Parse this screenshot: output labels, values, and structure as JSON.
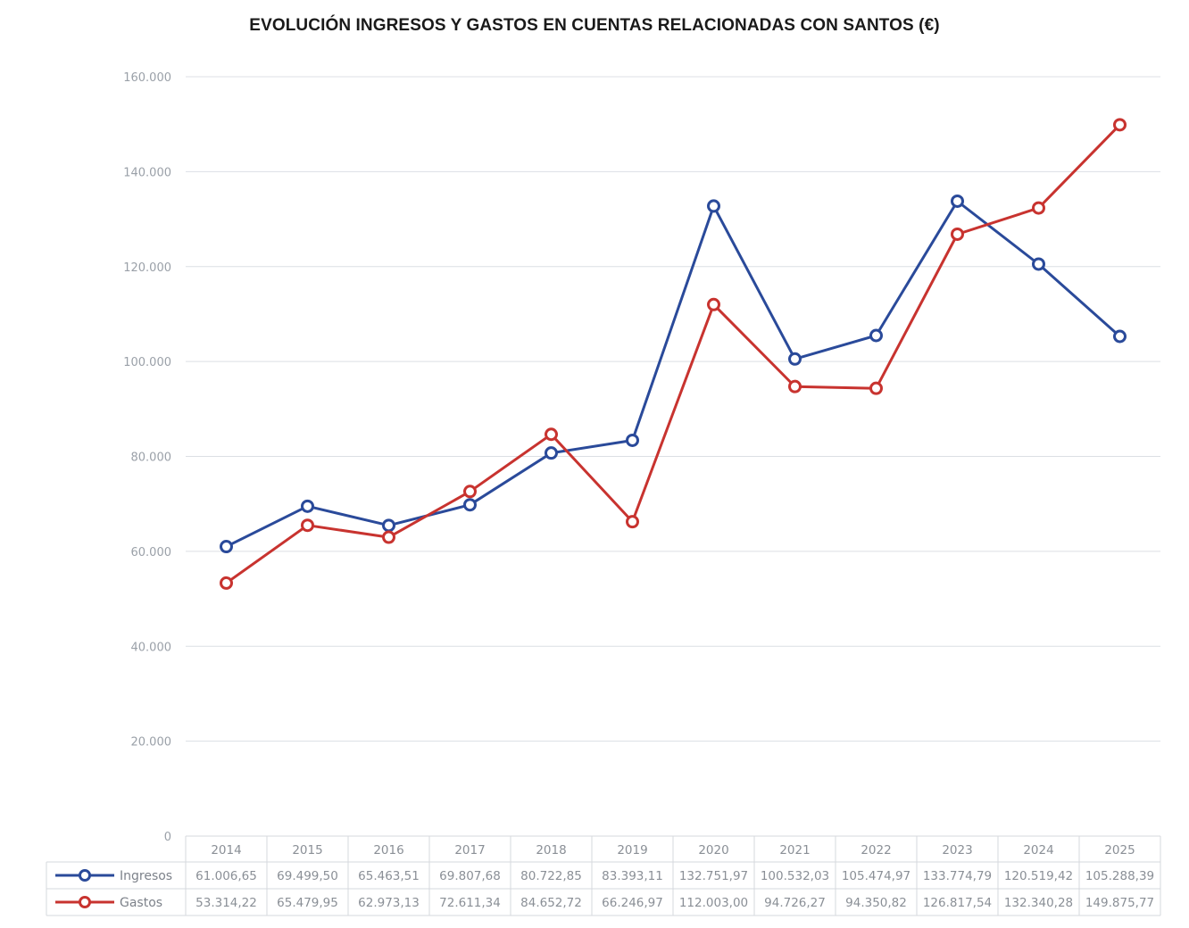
{
  "chart_data": {
    "type": "line",
    "title": "EVOLUCIÓN INGRESOS Y GASTOS EN CUENTAS RELACIONADAS CON SANTOS (€)",
    "xlabel": "",
    "ylabel": "",
    "ylim": [
      0,
      160000
    ],
    "yticks": [
      0,
      20000,
      40000,
      60000,
      80000,
      100000,
      120000,
      140000,
      160000
    ],
    "ytick_labels": [
      "0",
      "20.000",
      "40.000",
      "60.000",
      "80.000",
      "100.000",
      "120.000",
      "140.000",
      "160.000"
    ],
    "grid": true,
    "legend": "bottom-left (data table)",
    "categories": [
      "2014",
      "2015",
      "2016",
      "2017",
      "2018",
      "2019",
      "2020",
      "2021",
      "2022",
      "2023",
      "2024",
      "2025"
    ],
    "series": [
      {
        "name": "Ingresos",
        "color": "#2a4a9a",
        "values": [
          61006.65,
          69499.5,
          65463.51,
          69807.68,
          80722.85,
          83393.11,
          132751.97,
          100532.03,
          105474.97,
          133774.79,
          120519.42,
          105288.39
        ],
        "labels": [
          "61.006,65",
          "69.499,50",
          "65.463,51",
          "69.807,68",
          "80.722,85",
          "83.393,11",
          "132.751,97",
          "100.532,03",
          "105.474,97",
          "133.774,79",
          "120.519,42",
          "105.288,39"
        ]
      },
      {
        "name": "Gastos",
        "color": "#c8332f",
        "values": [
          53314.22,
          65479.95,
          62973.13,
          72611.34,
          84652.72,
          66246.97,
          112003.0,
          94726.27,
          94350.82,
          126817.54,
          132340.28,
          149875.77
        ],
        "labels": [
          "53.314,22",
          "65.479,95",
          "62.973,13",
          "72.611,34",
          "84.652,72",
          "66.246,97",
          "112.003,00",
          "94.726,27",
          "94.350,82",
          "126.817,54",
          "132.340,28",
          "149.875,77"
        ]
      }
    ]
  }
}
